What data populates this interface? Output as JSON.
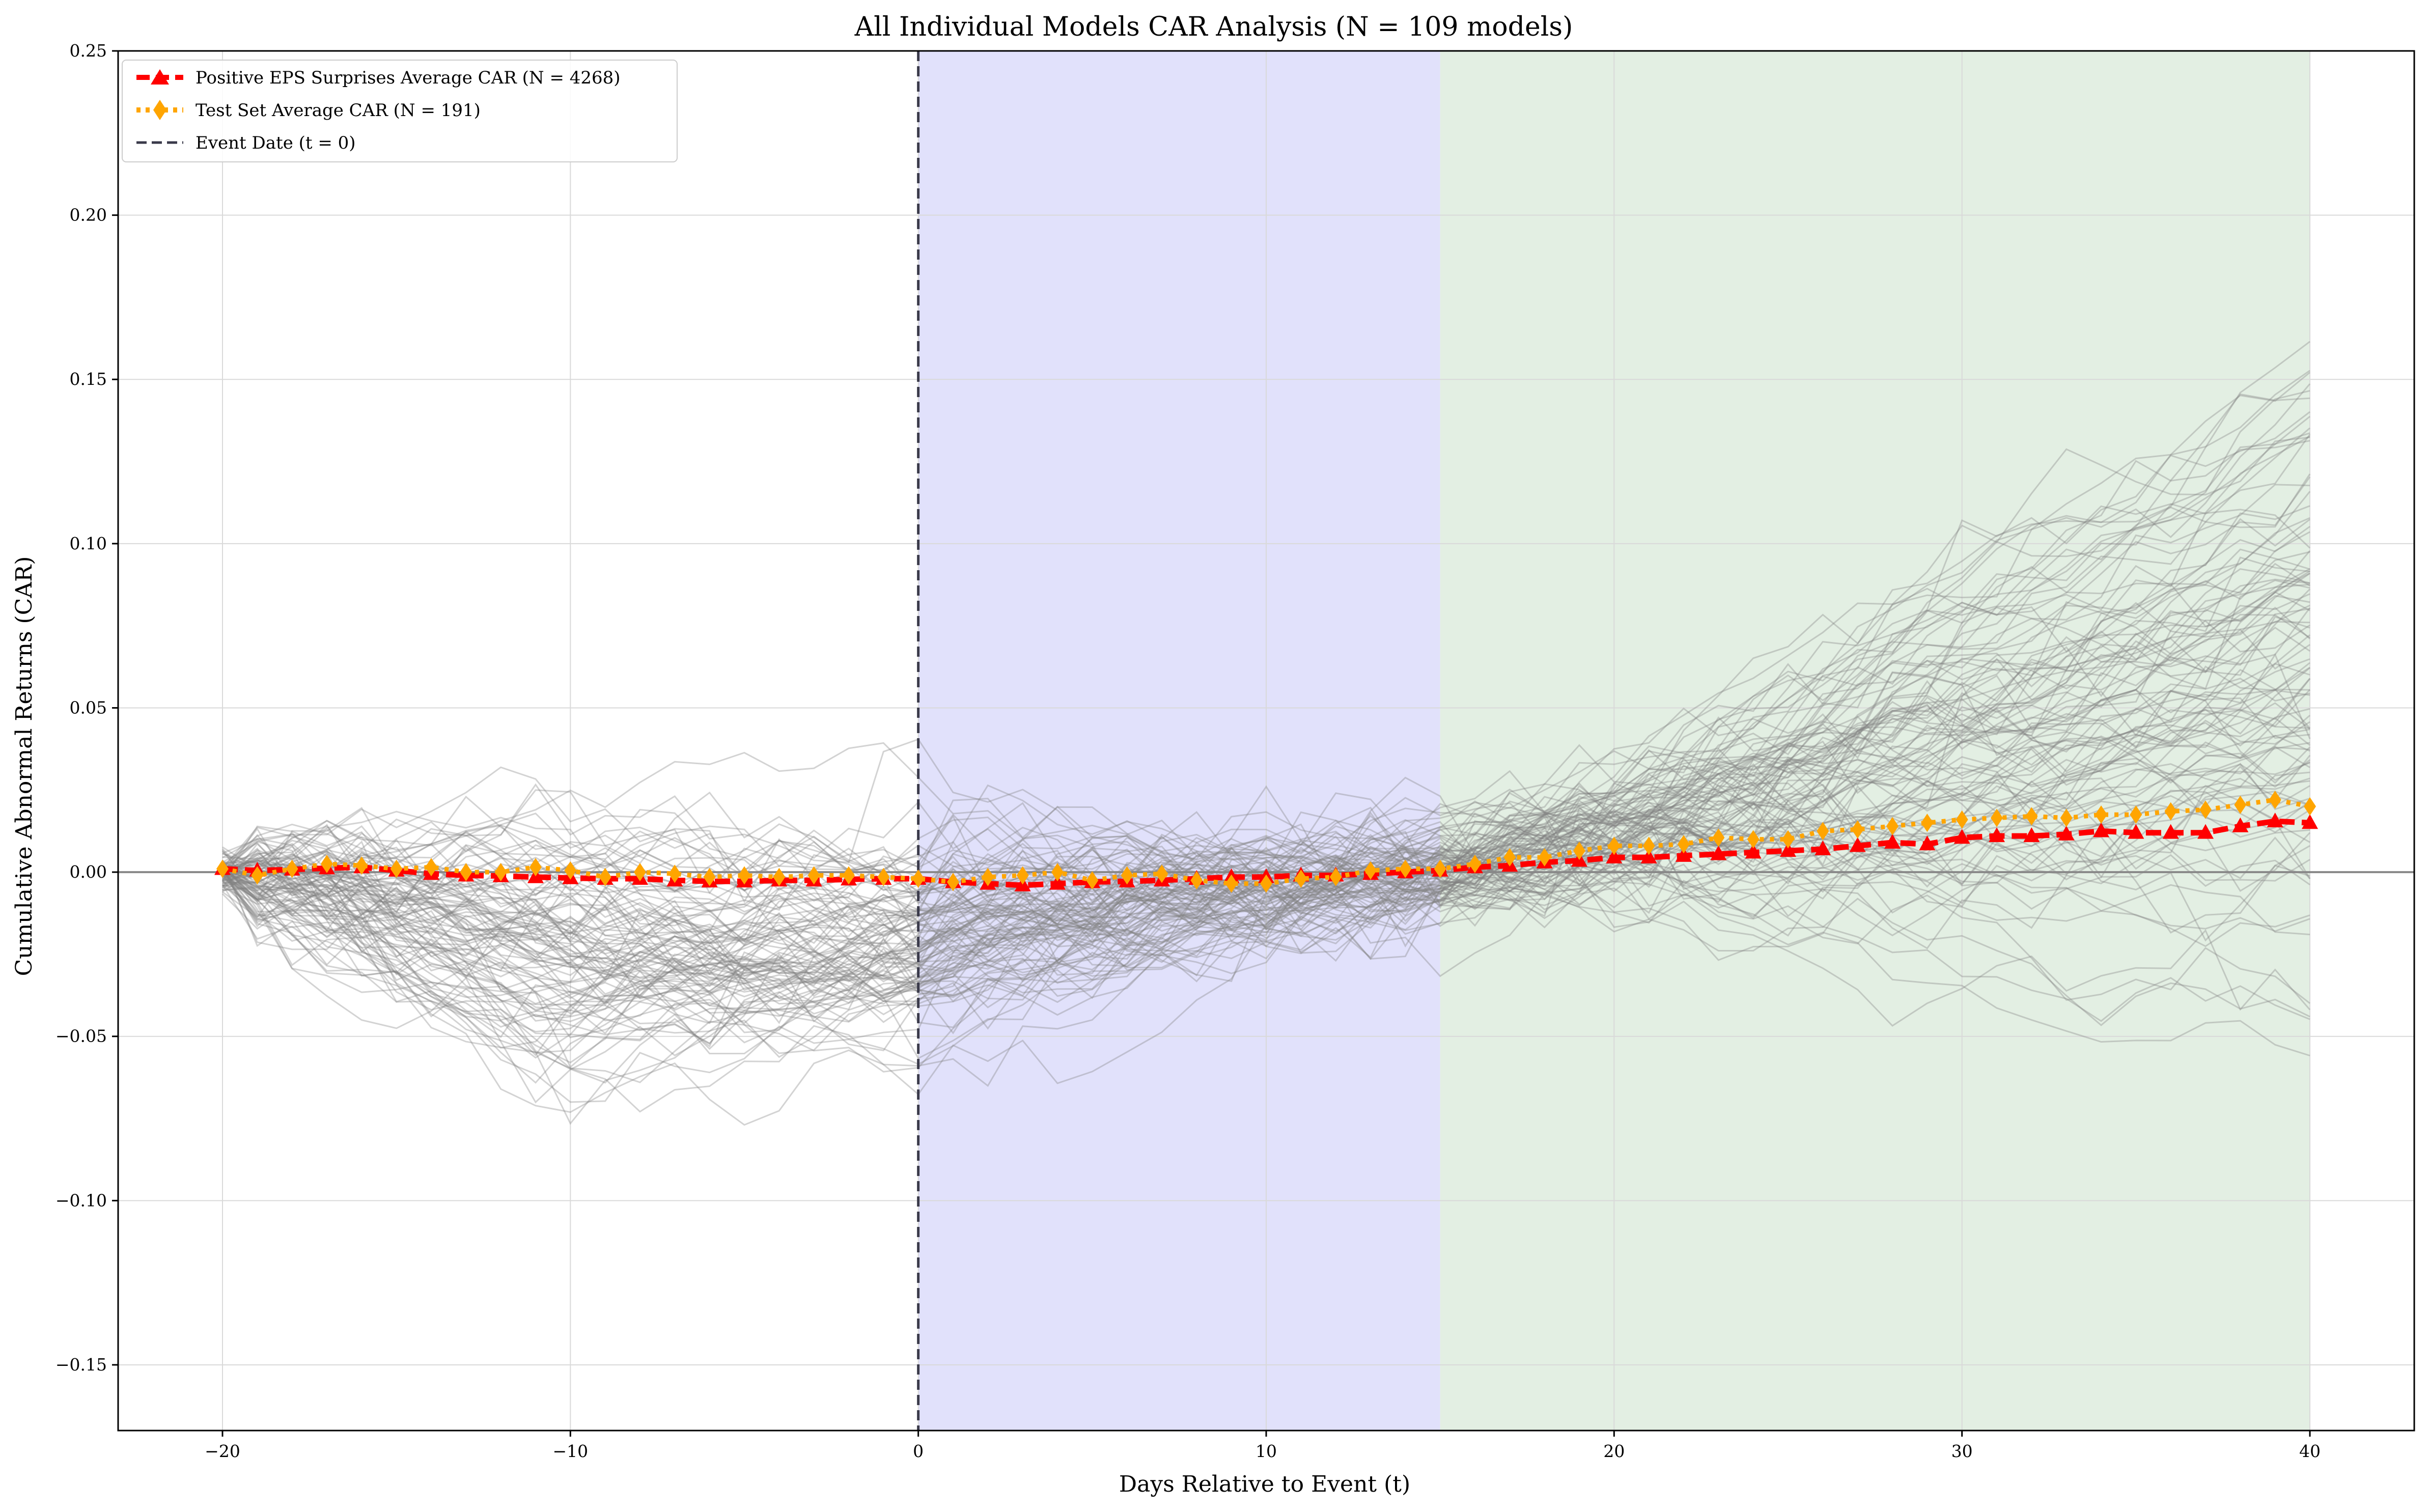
{
  "chart_data": {
    "type": "line",
    "title": "All Individual Models CAR Analysis   (N = 109 models)",
    "xlabel": "Days Relative to Event (t)",
    "ylabel": "Cumulative Abnormal Returns (CAR)",
    "xlim": [
      -23,
      43
    ],
    "ylim": [
      -0.17,
      0.25
    ],
    "x_ticks": [
      -20,
      -10,
      0,
      10,
      20,
      30,
      40
    ],
    "x_tick_labels": [
      "−20",
      "−10",
      "0",
      "10",
      "20",
      "30",
      "40"
    ],
    "y_ticks": [
      -0.15,
      -0.1,
      -0.05,
      0.0,
      0.05,
      0.1,
      0.15,
      0.2,
      0.25
    ],
    "y_tick_labels": [
      "−0.15",
      "−0.10",
      "−0.05",
      "0.00",
      "0.05",
      "0.10",
      "0.15",
      "0.20",
      "0.25"
    ],
    "grid": true,
    "legend_position": "top-left",
    "shaded_regions": [
      {
        "x_start": 0,
        "x_end": 15,
        "color": "#e1e1fb"
      },
      {
        "x_start": 15,
        "x_end": 40,
        "color": "#e3efe3"
      }
    ],
    "reference_lines": [
      {
        "orientation": "vertical",
        "x": 0,
        "style": "dashed",
        "color": "#3a3a4a",
        "label": "Event Date   (t = 0)"
      },
      {
        "orientation": "horizontal",
        "y": 0,
        "style": "solid",
        "color": "#888888"
      }
    ],
    "series": [
      {
        "name": "Positive EPS Surprises Average CAR   (N = 4268)",
        "color": "#ff0000",
        "style": "dashed",
        "marker": "triangle",
        "x": [
          -20,
          -19,
          -18,
          -17,
          -16,
          -15,
          -14,
          -13,
          -12,
          -11,
          -10,
          -9,
          -8,
          -7,
          -6,
          -5,
          -4,
          -3,
          -2,
          -1,
          0,
          1,
          2,
          3,
          4,
          5,
          6,
          7,
          8,
          9,
          10,
          11,
          12,
          13,
          14,
          15,
          16,
          17,
          18,
          19,
          20,
          21,
          22,
          23,
          24,
          25,
          26,
          27,
          28,
          29,
          30,
          31,
          32,
          33,
          34,
          35,
          36,
          37,
          38,
          39,
          40
        ],
        "y": [
          0.001,
          0.0005,
          0.0008,
          0.0012,
          0.0015,
          0.0005,
          -0.0005,
          -0.001,
          -0.0012,
          -0.0015,
          -0.0018,
          -0.002,
          -0.002,
          -0.0025,
          -0.0028,
          -0.0028,
          -0.0025,
          -0.0025,
          -0.0022,
          -0.002,
          -0.002,
          -0.003,
          -0.0035,
          -0.004,
          -0.0035,
          -0.003,
          -0.0028,
          -0.0025,
          -0.002,
          -0.0015,
          -0.0015,
          -0.001,
          -0.001,
          -0.0005,
          0.0,
          0.0005,
          0.0015,
          0.002,
          0.003,
          0.0035,
          0.0045,
          0.0045,
          0.005,
          0.0055,
          0.006,
          0.0065,
          0.007,
          0.008,
          0.009,
          0.0085,
          0.0105,
          0.011,
          0.011,
          0.0115,
          0.0125,
          0.012,
          0.012,
          0.012,
          0.014,
          0.0155,
          0.015
        ]
      },
      {
        "name": "Test Set Average CAR   (N = 191)",
        "color": "#ffa500",
        "style": "dotted",
        "marker": "diamond",
        "x": [
          -20,
          -19,
          -18,
          -17,
          -16,
          -15,
          -14,
          -13,
          -12,
          -11,
          -10,
          -9,
          -8,
          -7,
          -6,
          -5,
          -4,
          -3,
          -2,
          -1,
          0,
          1,
          2,
          3,
          4,
          5,
          6,
          7,
          8,
          9,
          10,
          11,
          12,
          13,
          14,
          15,
          16,
          17,
          18,
          19,
          20,
          21,
          22,
          23,
          24,
          25,
          26,
          27,
          28,
          29,
          30,
          31,
          32,
          33,
          34,
          35,
          36,
          37,
          38,
          39,
          40
        ],
        "y": [
          0.001,
          -0.001,
          0.001,
          0.0025,
          0.002,
          0.001,
          0.0015,
          0.0,
          0.0,
          0.0015,
          0.0005,
          -0.0015,
          0.0,
          -0.0005,
          -0.0015,
          -0.001,
          -0.0015,
          -0.001,
          -0.001,
          -0.0015,
          -0.002,
          -0.003,
          -0.0015,
          -0.001,
          0.0,
          -0.0025,
          -0.001,
          -0.0005,
          -0.0025,
          -0.0035,
          -0.0035,
          -0.002,
          -0.0015,
          0.0005,
          0.001,
          0.001,
          0.0025,
          0.0045,
          0.0045,
          0.0065,
          0.008,
          0.008,
          0.0085,
          0.0105,
          0.01,
          0.01,
          0.0125,
          0.013,
          0.014,
          0.015,
          0.016,
          0.0165,
          0.017,
          0.0165,
          0.0175,
          0.0175,
          0.0185,
          0.019,
          0.0205,
          0.022,
          0.02
        ]
      }
    ],
    "background_lines": {
      "description_count": 109,
      "color": "#808080",
      "x": [
        -20,
        -19,
        -18,
        -17,
        -16,
        -15,
        -14,
        -13,
        -12,
        -11,
        -10,
        -9,
        -8,
        -7,
        -6,
        -5,
        -4,
        -3,
        -2,
        -1,
        0,
        1,
        2,
        3,
        4,
        5,
        6,
        7,
        8,
        9,
        10,
        11,
        12,
        13,
        14,
        15,
        16,
        17,
        18,
        19,
        20,
        21,
        22,
        23,
        24,
        25,
        26,
        27,
        28,
        29,
        30,
        31,
        32,
        33,
        34,
        35,
        36,
        37,
        38,
        39,
        40
      ]
    }
  },
  "legend": [
    {
      "label": "Positive EPS Surprises Average CAR   (N = 4268)",
      "color": "#ff0000"
    },
    {
      "label": "Test Set Average CAR   (N = 191)",
      "color": "#ffa500"
    },
    {
      "label": "Event Date   (t = 0)",
      "color": "#3a3a4a"
    }
  ]
}
